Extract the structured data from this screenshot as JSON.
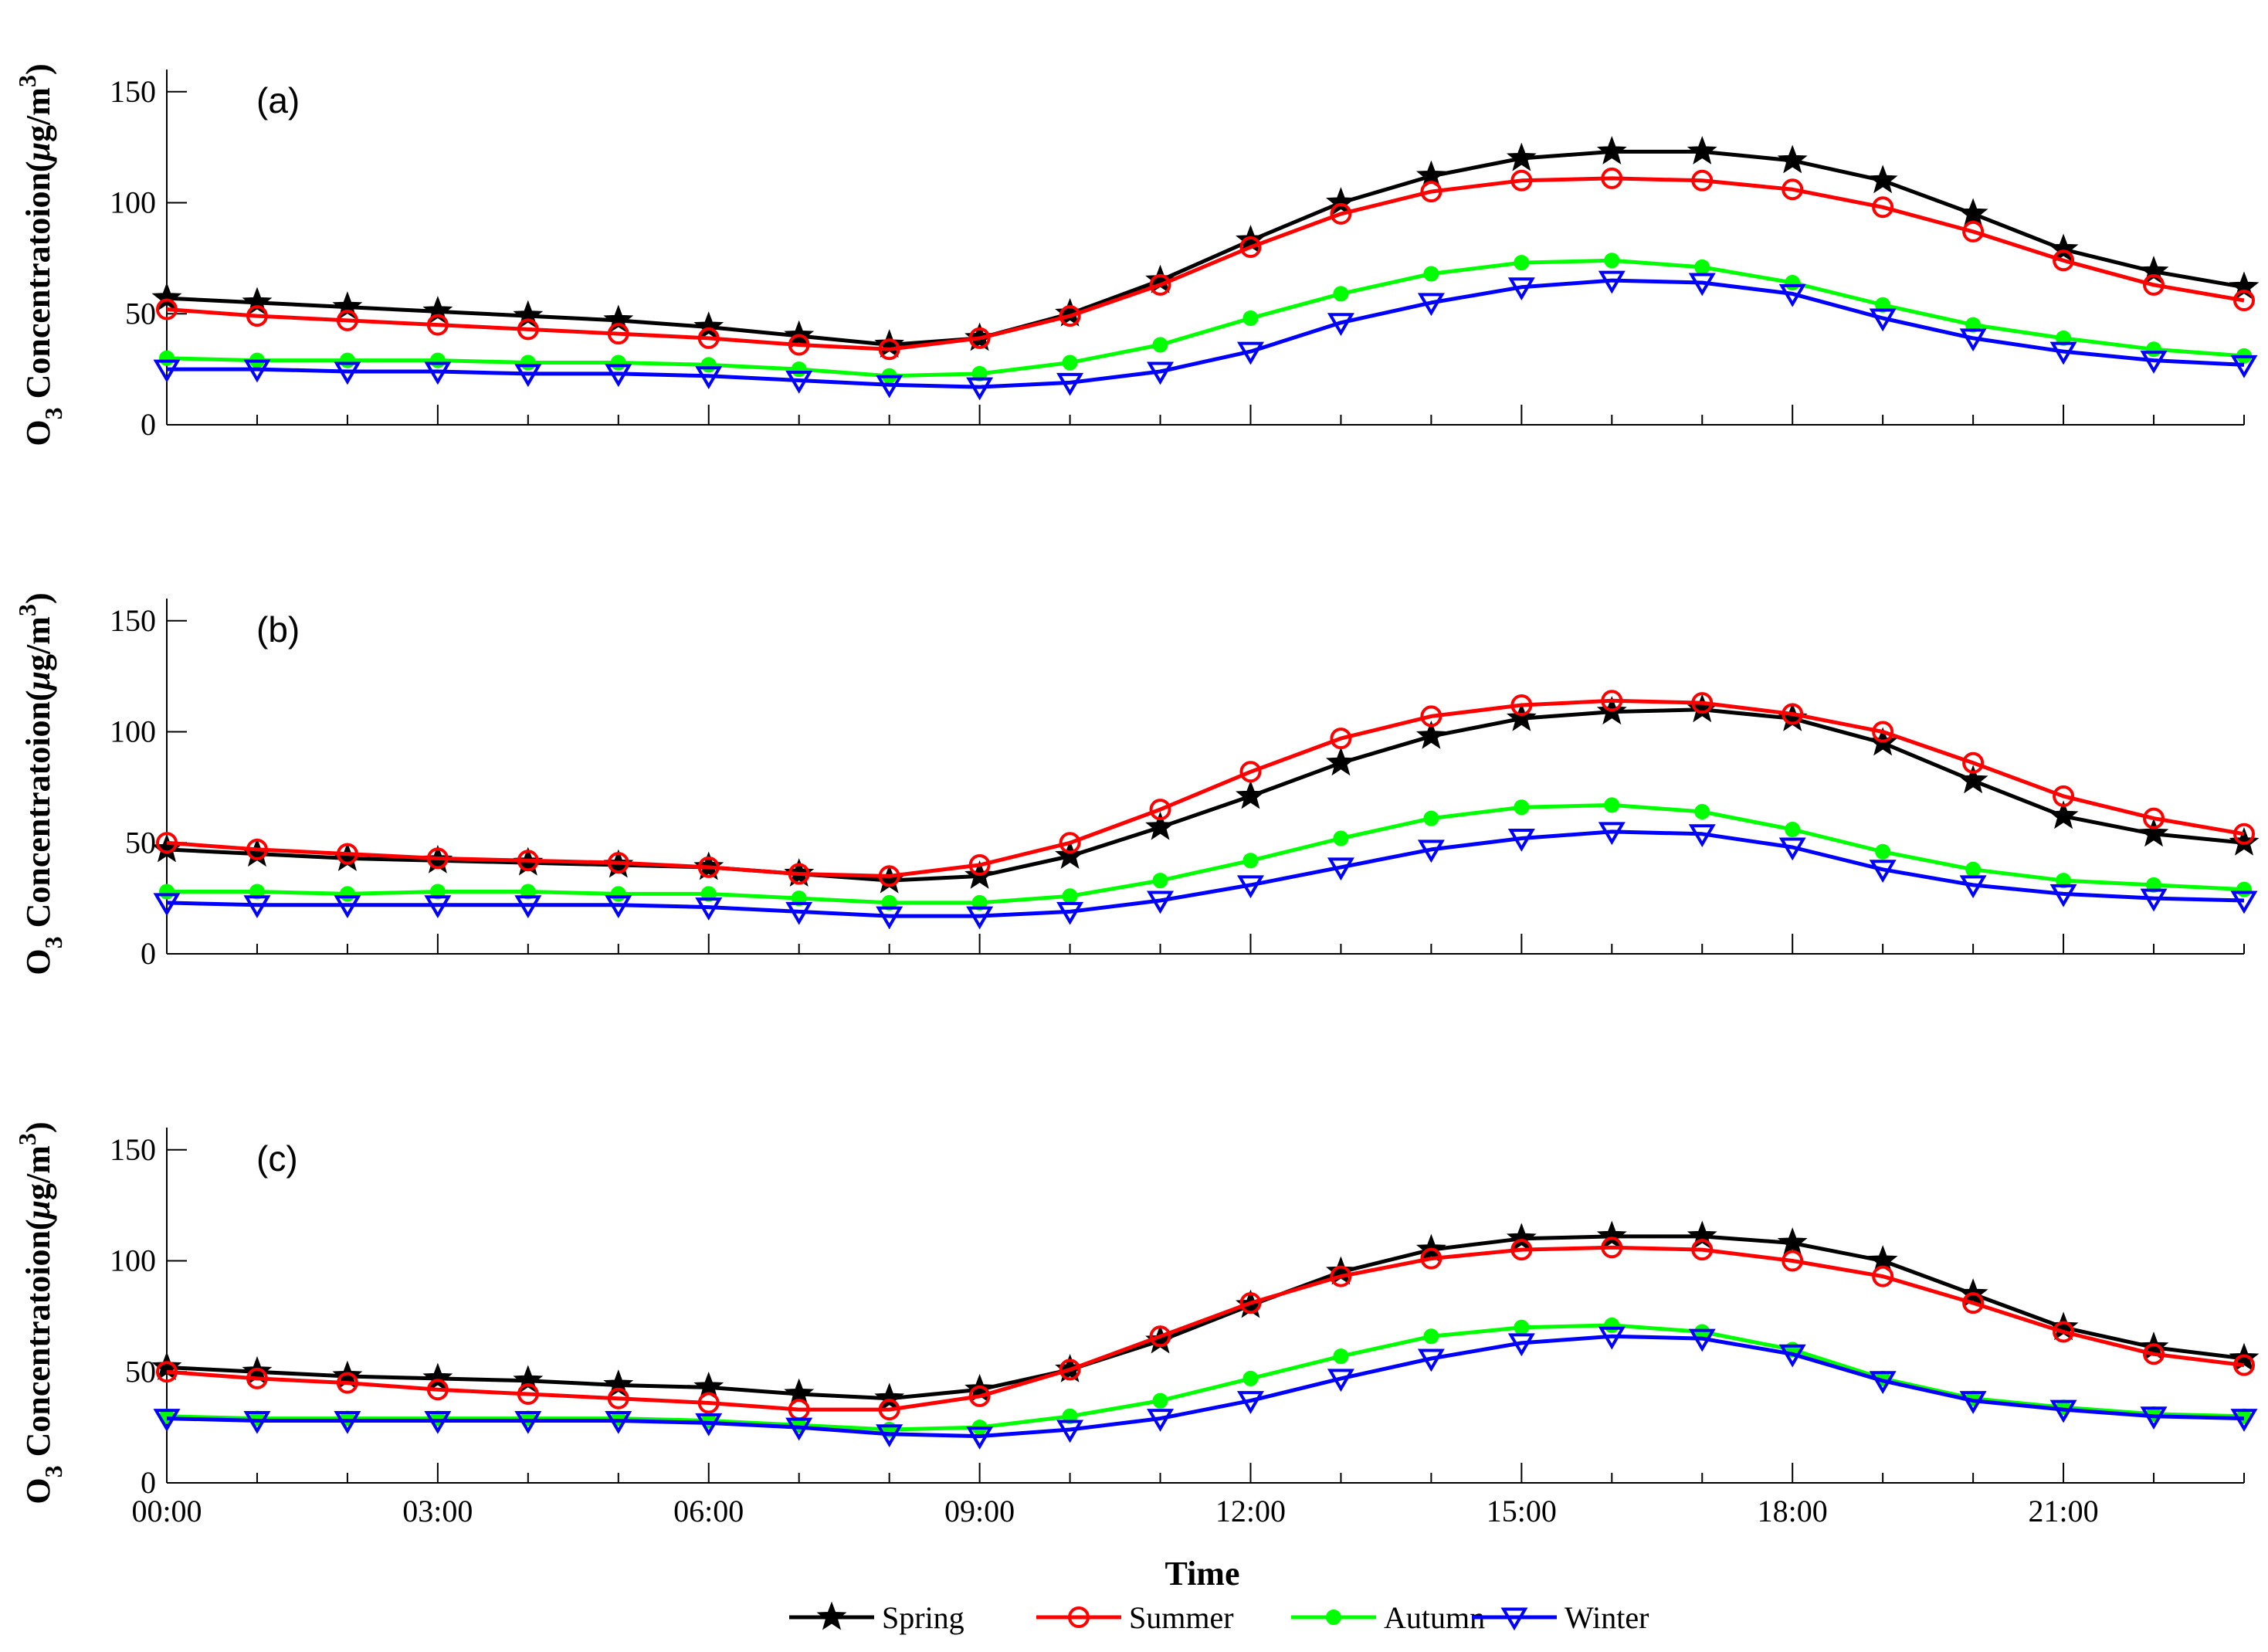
{
  "chart_data": {
    "type": "line",
    "xlabel": "Time",
    "ylabel_prefix": "O",
    "ylabel_sub": "3",
    "ylabel_rest": " Concentratoion(",
    "ylabel_mu": "μ",
    "ylabel_unit": "g/m",
    "ylabel_sup": "3",
    "ylabel_close": ")",
    "ylim": [
      0,
      160
    ],
    "yticks": [
      0,
      50,
      100,
      150
    ],
    "ytick_labels": [
      "0",
      "50",
      "100",
      "150"
    ],
    "xlim": [
      0,
      23
    ],
    "xticks": [
      0,
      3,
      6,
      9,
      12,
      15,
      18,
      21
    ],
    "xtick_labels": [
      "00:00",
      "03:00",
      "06:00",
      "09:00",
      "12:00",
      "15:00",
      "18:00",
      "21:00"
    ],
    "x": [
      0,
      1,
      2,
      3,
      4,
      5,
      6,
      7,
      8,
      9,
      10,
      11,
      12,
      13,
      14,
      15,
      16,
      17,
      18,
      19,
      20,
      21,
      22,
      23
    ],
    "series_styles": [
      {
        "name": "Spring",
        "color": "#000000",
        "marker": "star"
      },
      {
        "name": "Summer",
        "color": "#ff0000",
        "marker": "circle"
      },
      {
        "name": "Autumn",
        "color": "#00ff00",
        "marker": "dot"
      },
      {
        "name": "Winter",
        "color": "#0000ff",
        "marker": "triangle-down"
      }
    ],
    "legend_position": "bottom-center",
    "panels": [
      {
        "label": "(a)",
        "series": [
          {
            "name": "Spring",
            "values": [
              57,
              55,
              53,
              51,
              49,
              47,
              44,
              40,
              36,
              39,
              50,
              65,
              83,
              100,
              112,
              120,
              123,
              123,
              119,
              110,
              95,
              79,
              69,
              62
            ]
          },
          {
            "name": "Summer",
            "values": [
              52,
              49,
              47,
              45,
              43,
              41,
              39,
              36,
              34,
              39,
              49,
              63,
              80,
              95,
              105,
              110,
              111,
              110,
              106,
              98,
              87,
              74,
              63,
              56
            ]
          },
          {
            "name": "Autumn",
            "values": [
              30,
              29,
              29,
              29,
              28,
              28,
              27,
              25,
              22,
              23,
              28,
              36,
              48,
              59,
              68,
              73,
              74,
              71,
              64,
              54,
              45,
              39,
              34,
              31
            ]
          },
          {
            "name": "Winter",
            "values": [
              25,
              25,
              24,
              24,
              23,
              23,
              22,
              20,
              18,
              17,
              19,
              24,
              33,
              46,
              55,
              62,
              65,
              64,
              59,
              48,
              39,
              33,
              29,
              27
            ]
          }
        ]
      },
      {
        "label": "(b)",
        "series": [
          {
            "name": "Spring",
            "values": [
              47,
              45,
              43,
              42,
              41,
              40,
              39,
              36,
              33,
              35,
              44,
              57,
              71,
              86,
              98,
              106,
              109,
              110,
              106,
              95,
              78,
              62,
              54,
              50
            ]
          },
          {
            "name": "Summer",
            "values": [
              50,
              47,
              45,
              43,
              42,
              41,
              39,
              36,
              35,
              40,
              50,
              65,
              82,
              97,
              107,
              112,
              114,
              113,
              108,
              100,
              86,
              71,
              61,
              54
            ]
          },
          {
            "name": "Autumn",
            "values": [
              28,
              28,
              27,
              28,
              28,
              27,
              27,
              25,
              23,
              23,
              26,
              33,
              42,
              52,
              61,
              66,
              67,
              64,
              56,
              46,
              38,
              33,
              31,
              29
            ]
          },
          {
            "name": "Winter",
            "values": [
              23,
              22,
              22,
              22,
              22,
              22,
              21,
              19,
              17,
              17,
              19,
              24,
              31,
              39,
              47,
              52,
              55,
              54,
              48,
              38,
              31,
              27,
              25,
              24
            ]
          }
        ]
      },
      {
        "label": "(c)",
        "series": [
          {
            "name": "Spring",
            "values": [
              52,
              50,
              48,
              47,
              46,
              44,
              43,
              40,
              38,
              42,
              51,
              64,
              80,
              95,
              105,
              110,
              111,
              111,
              108,
              100,
              85,
              70,
              61,
              56
            ]
          },
          {
            "name": "Summer",
            "values": [
              50,
              47,
              45,
              42,
              40,
              38,
              36,
              33,
              33,
              39,
              51,
              66,
              81,
              93,
              101,
              105,
              106,
              105,
              100,
              93,
              81,
              68,
              58,
              53
            ]
          },
          {
            "name": "Autumn",
            "values": [
              30,
              29,
              29,
              29,
              29,
              29,
              28,
              26,
              24,
              25,
              30,
              37,
              47,
              57,
              66,
              70,
              71,
              68,
              60,
              47,
              38,
              34,
              31,
              30
            ]
          },
          {
            "name": "Winter",
            "values": [
              29,
              28,
              28,
              28,
              28,
              28,
              27,
              25,
              22,
              21,
              24,
              29,
              37,
              47,
              56,
              63,
              66,
              65,
              58,
              46,
              37,
              33,
              30,
              29
            ]
          }
        ]
      }
    ]
  }
}
